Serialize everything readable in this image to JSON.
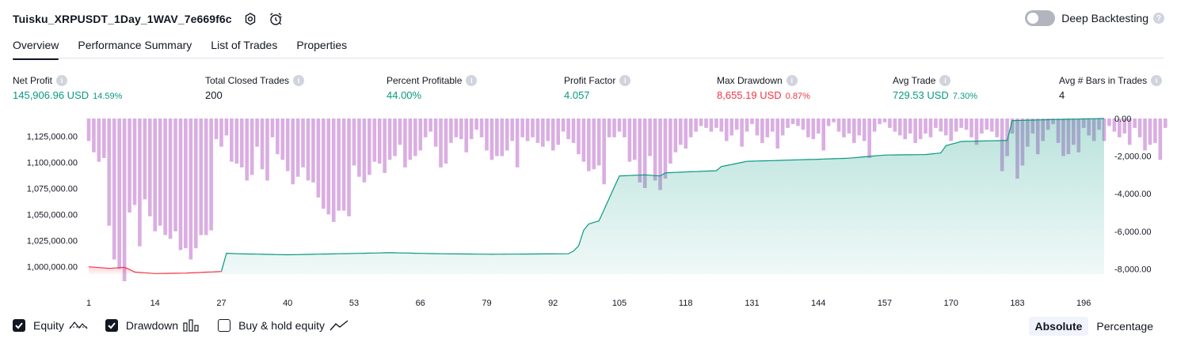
{
  "header": {
    "strategy_name": "Tuisku_XRPUSDT_1Day_1WAV_7e669f6c",
    "settings_icon": "gear-icon",
    "alert_icon": "alarm-clock-icon",
    "deep_backtesting_label": "Deep Backtesting",
    "deep_backtesting_enabled": false
  },
  "tabs": [
    {
      "label": "Overview",
      "active": true
    },
    {
      "label": "Performance Summary",
      "active": false
    },
    {
      "label": "List of Trades",
      "active": false
    },
    {
      "label": "Properties",
      "active": false
    }
  ],
  "metrics": [
    {
      "label": "Net Profit",
      "value": "145,906.96 USD",
      "pct": "14.59%",
      "color": "#089981"
    },
    {
      "label": "Total Closed Trades",
      "value": "200",
      "pct": "",
      "color": "#131722"
    },
    {
      "label": "Percent Profitable",
      "value": "44.00%",
      "pct": "",
      "color": "#089981"
    },
    {
      "label": "Profit Factor",
      "value": "4.057",
      "pct": "",
      "color": "#089981"
    },
    {
      "label": "Max Drawdown",
      "value": "8,655.19 USD",
      "pct": "0.87%",
      "color": "#f23645"
    },
    {
      "label": "Avg Trade",
      "value": "729.53 USD",
      "pct": "7.30%",
      "color": "#089981"
    },
    {
      "label": "Avg # Bars in Trades",
      "value": "4",
      "pct": "",
      "color": "#131722"
    }
  ],
  "chart_data": {
    "type": "line",
    "x_ticks": [
      "1",
      "14",
      "27",
      "40",
      "53",
      "66",
      "79",
      "92",
      "105",
      "118",
      "131",
      "144",
      "157",
      "170",
      "183",
      "196"
    ],
    "left_axis_ticks": [
      "1,125,000.00",
      "1,100,000.00",
      "1,075,000.00",
      "1,050,000.00",
      "1,025,000.00",
      "1,000,000.00"
    ],
    "right_axis_ticks": [
      "0.00",
      "-2,000.00",
      "-4,000.00",
      "-6,000.00",
      "-8,000.00"
    ],
    "equity_color": "#089981",
    "equity_below_start_color": "#f23645",
    "drawdown_color": "#ce93d8",
    "series": [
      {
        "name": "Equity",
        "trades": [
          1,
          5,
          8,
          9,
          10,
          14,
          20,
          27,
          28,
          30,
          40,
          50,
          60,
          70,
          80,
          95,
          96,
          97,
          98,
          99,
          101,
          105,
          110,
          113,
          114,
          124,
          125,
          130,
          144,
          150,
          157,
          165,
          168,
          169,
          172,
          181,
          182,
          190,
          200
        ],
        "values": [
          1000000,
          998500,
          999500,
          997500,
          995000,
          993500,
          994000,
          995500,
          1013000,
          1012500,
          1011500,
          1012500,
          1013500,
          1012500,
          1012000,
          1012500,
          1015000,
          1020000,
          1035000,
          1041000,
          1044000,
          1087000,
          1088000,
          1087000,
          1090000,
          1092000,
          1096000,
          1101000,
          1103000,
          1104000,
          1107000,
          1107500,
          1109000,
          1116000,
          1120000,
          1121000,
          1140000,
          1141000,
          1142000
        ]
      },
      {
        "name": "Drawdown",
        "values": [
          -1200,
          -1800,
          -2300,
          -2100,
          -5700,
          -7500,
          -8000,
          -8655,
          -5000,
          -4600,
          -6800,
          -4300,
          -5200,
          -6000,
          -5700,
          -6200,
          -6400,
          -6000,
          -7000,
          -6900,
          -7500,
          -6900,
          -6200,
          -6200,
          -5950,
          -1100,
          -1500,
          -900,
          -2300,
          -2400,
          -2600,
          -3300,
          -3000,
          -1500,
          -2700,
          -3300,
          -1000,
          -1900,
          -2200,
          -2800,
          -3500,
          -3100,
          -2600,
          -3300,
          -3400,
          -4200,
          -4800,
          -5100,
          -5500,
          -4900,
          -4900,
          -5200,
          -2500,
          -3100,
          -3400,
          -3000,
          -2300,
          -2400,
          -2900,
          -2200,
          -2000,
          -1400,
          -2600,
          -2200,
          -2000,
          -1700,
          -1000,
          -700,
          -1500,
          -2600,
          -2400,
          -1300,
          -1000,
          -1100,
          -1800,
          -1100,
          -600,
          -1000,
          -1700,
          -2200,
          -2000,
          -2000,
          -1700,
          -1200,
          -2600,
          -1000,
          -1200,
          -1000,
          -1300,
          -1500,
          -1200,
          -1700,
          -1400,
          -700,
          -1100,
          -1300,
          -1900,
          -2300,
          -2800,
          -2700,
          -2500,
          -3500,
          -1000,
          -1000,
          -700,
          -1000,
          -2300,
          -2200,
          -3400,
          -3700,
          -2000,
          -3300,
          -3800,
          -3200,
          -2400,
          -1800,
          -1400,
          -1600,
          -1000,
          -700,
          -400,
          -500,
          -700,
          -500,
          -700,
          -1200,
          -900,
          -600,
          -1500,
          -700,
          -300,
          -900,
          -1300,
          -1000,
          -700,
          -1600,
          -900,
          -500,
          -300,
          -400,
          -600,
          -1000,
          -1100,
          -800,
          -1700,
          -400,
          -200,
          -700,
          -1000,
          -800,
          -1300,
          -900,
          -1200,
          -2100,
          -700,
          -300,
          -200,
          -500,
          -700,
          -900,
          -1100,
          -800,
          -1300,
          -1100,
          -800,
          -1000,
          -500,
          -700,
          -900,
          -1200,
          -700,
          -500,
          -600,
          -1000,
          -1400,
          -800,
          -600,
          -700,
          -1000,
          -2800,
          -2000,
          -800,
          -3200,
          -2500,
          -1500,
          -800,
          -1900,
          -1200,
          -600,
          -300,
          -1300,
          -2000,
          -1900,
          -1400,
          -1800,
          -500,
          -900,
          -1200,
          -600,
          -1200,
          -400,
          -700,
          -1000,
          -800,
          -1400,
          -500,
          -1000,
          -1700,
          -1400,
          -1300,
          -2200,
          -500
        ]
      }
    ],
    "left_ylim": [
      993000,
      1142000
    ],
    "right_ylim": [
      -8655,
      0
    ]
  },
  "legend": {
    "items": [
      {
        "label": "Equity",
        "checked": true,
        "icon": "equity-line-icon"
      },
      {
        "label": "Drawdown",
        "checked": true,
        "icon": "bars-icon"
      },
      {
        "label": "Buy & hold equity",
        "checked": false,
        "icon": "line-chart-icon"
      }
    ],
    "mode_buttons": [
      {
        "label": "Absolute",
        "active": true
      },
      {
        "label": "Percentage",
        "active": false
      }
    ]
  }
}
